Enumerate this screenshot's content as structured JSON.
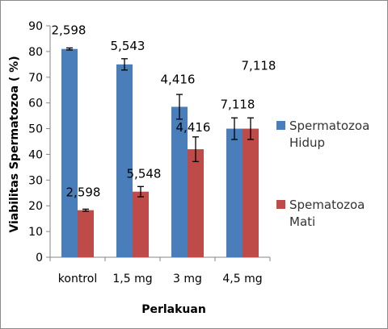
{
  "chart_data": {
    "type": "bar",
    "title": "",
    "xlabel": "Perlakuan",
    "ylabel": "Viabilitas Spermatozoa ( %)",
    "ylim": [
      0,
      90
    ],
    "yticks": [
      0,
      10,
      20,
      30,
      40,
      50,
      60,
      70,
      80,
      90
    ],
    "grid": false,
    "legend_position": "right",
    "categories": [
      "kontrol",
      "1,5 mg",
      "3 mg",
      "4,5 mg"
    ],
    "series": [
      {
        "name_lines": [
          "Spermatozoa",
          "Hidup"
        ],
        "color": "#4a7ebb",
        "values": [
          81,
          75,
          58.5,
          50
        ],
        "errors": [
          0.4,
          2.2,
          4.8,
          4.2
        ],
        "data_labels": [
          "2,598",
          "5,543",
          "4,416",
          "7,118"
        ]
      },
      {
        "name_lines": [
          "Spematozoa",
          "Mati"
        ],
        "color": "#be4b48",
        "values": [
          18.3,
          25.5,
          42,
          50
        ],
        "errors": [
          0.4,
          2.0,
          4.8,
          4.2
        ],
        "data_labels": [
          "2,598",
          "5,548",
          "4,416",
          "7,118"
        ]
      }
    ]
  }
}
